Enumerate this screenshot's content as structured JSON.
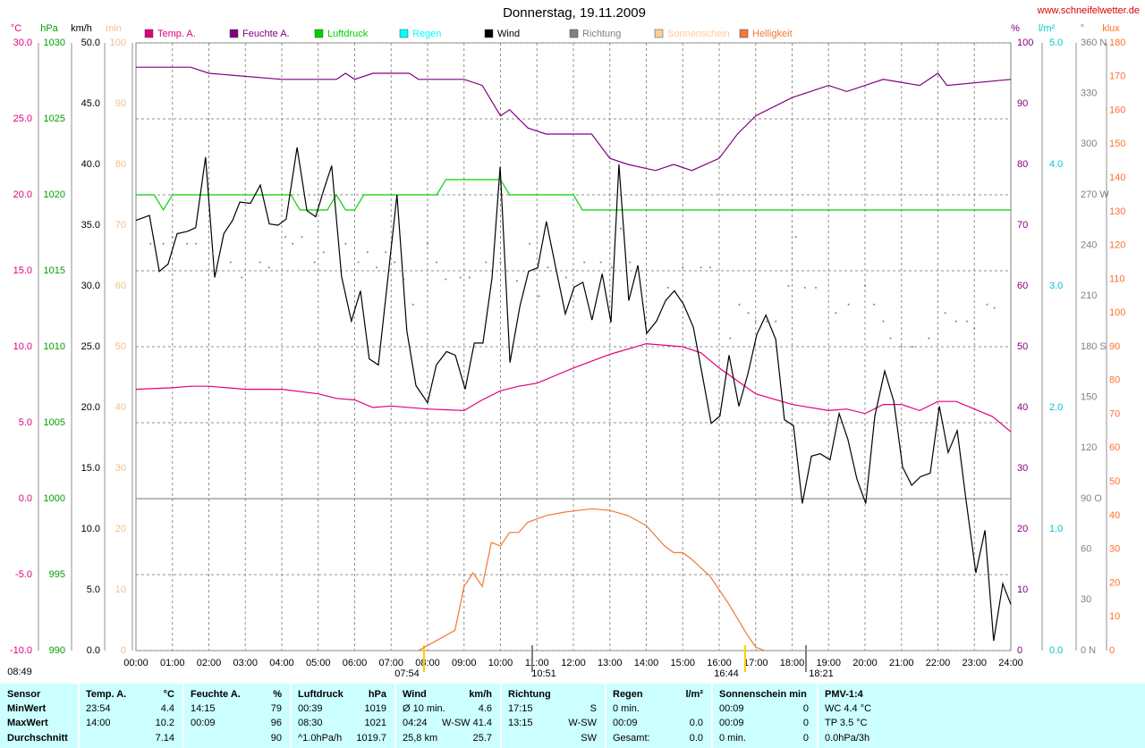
{
  "chart_data": {
    "type": "line",
    "title": "Donnerstag, 19.11.2009",
    "source": "www.schneifelwetter.de",
    "xlim": [
      0,
      24
    ],
    "xticks": [
      {
        "value": 0,
        "label": "00:00"
      },
      {
        "value": 1,
        "label": "01:00"
      },
      {
        "value": 2,
        "label": "02:00"
      },
      {
        "value": 3,
        "label": "03:00"
      },
      {
        "value": 4,
        "label": "04:00"
      },
      {
        "value": 5,
        "label": "05:00"
      },
      {
        "value": 6,
        "label": "06:00"
      },
      {
        "value": 7,
        "label": "07:00"
      },
      {
        "value": 8,
        "label": "08:00"
      },
      {
        "value": 9,
        "label": "09:00"
      },
      {
        "value": 10,
        "label": "10:00"
      },
      {
        "value": 11,
        "label": "11:00"
      },
      {
        "value": 12,
        "label": "12:00"
      },
      {
        "value": 13,
        "label": "13:00"
      },
      {
        "value": 14,
        "label": "14:00"
      },
      {
        "value": 15,
        "label": "15:00"
      },
      {
        "value": 16,
        "label": "16:00"
      },
      {
        "value": 17,
        "label": "17:00"
      },
      {
        "value": 18,
        "label": "18:00"
      },
      {
        "value": 19,
        "label": "19:00"
      },
      {
        "value": 20,
        "label": "20:00"
      },
      {
        "value": 21,
        "label": "21:00"
      },
      {
        "value": 22,
        "label": "22:00"
      },
      {
        "value": 23,
        "label": "23:00"
      },
      {
        "value": 24,
        "label": "24:00"
      }
    ],
    "grid": true,
    "axes": [
      {
        "unit": "°C",
        "color": "#e0007f",
        "side": "left",
        "ylim": [
          -10,
          30
        ],
        "yticks": [
          {
            "value": -10,
            "label": "-10.0"
          },
          {
            "value": -5,
            "label": "-5.0"
          },
          {
            "value": 0,
            "label": "0.0"
          },
          {
            "value": 5,
            "label": "5.0"
          },
          {
            "value": 10,
            "label": "10.0"
          },
          {
            "value": 15,
            "label": "15.0"
          },
          {
            "value": 20,
            "label": "20.0"
          },
          {
            "value": 25,
            "label": "25.0"
          },
          {
            "value": 30,
            "label": "30.0"
          }
        ]
      },
      {
        "unit": "hPa",
        "color": "#00a000",
        "side": "left",
        "ylim": [
          990,
          1030
        ],
        "yticks": [
          990,
          995,
          1000,
          1005,
          1010,
          1015,
          1020,
          1025,
          1030
        ]
      },
      {
        "unit": "km/h",
        "color": "#000000",
        "side": "left",
        "ylim": [
          0,
          50
        ],
        "yticks": [
          {
            "value": 0,
            "label": "0.0"
          },
          {
            "value": 5,
            "label": "5.0"
          },
          {
            "value": 10,
            "label": "10.0"
          },
          {
            "value": 15,
            "label": "15.0"
          },
          {
            "value": 20,
            "label": "20.0"
          },
          {
            "value": 25,
            "label": "25.0"
          },
          {
            "value": 30,
            "label": "30.0"
          },
          {
            "value": 35,
            "label": "35.0"
          },
          {
            "value": 40,
            "label": "40.0"
          },
          {
            "value": 45,
            "label": "45.0"
          },
          {
            "value": 50,
            "label": "50.0"
          }
        ]
      },
      {
        "unit": "min",
        "color": "#f0c090",
        "side": "left",
        "ylim": [
          0,
          100
        ],
        "yticks": [
          0,
          10,
          20,
          30,
          40,
          50,
          60,
          70,
          80,
          90,
          100
        ]
      },
      {
        "unit": "%",
        "color": "#800080",
        "side": "right",
        "ylim": [
          0,
          100
        ],
        "yticks": [
          0,
          10,
          20,
          30,
          40,
          50,
          60,
          70,
          80,
          90,
          100
        ]
      },
      {
        "unit": "l/m²",
        "color": "#00c8c8",
        "side": "right",
        "ylim": [
          0,
          5
        ],
        "yticks": [
          {
            "value": 0,
            "label": "0.0"
          },
          {
            "value": 1,
            "label": "1.0"
          },
          {
            "value": 2,
            "label": "2.0"
          },
          {
            "value": 3,
            "label": "3.0"
          },
          {
            "value": 4,
            "label": "4.0"
          },
          {
            "value": 5,
            "label": "5.0"
          }
        ]
      },
      {
        "unit": "°",
        "color": "#808080",
        "side": "right",
        "ylim": [
          0,
          360
        ],
        "yticks": [
          {
            "value": 0,
            "label": "0 N"
          },
          30,
          60,
          {
            "value": 90,
            "label": "90 O"
          },
          120,
          150,
          {
            "value": 180,
            "label": "180 S"
          },
          210,
          240,
          {
            "value": 270,
            "label": "270 W"
          },
          300,
          330,
          {
            "value": 360,
            "label": "360 N"
          }
        ]
      },
      {
        "unit": "klux",
        "color": "#ff7030",
        "side": "right",
        "ylim": [
          0,
          180
        ],
        "yticks": [
          0,
          10,
          20,
          30,
          40,
          50,
          60,
          70,
          80,
          90,
          100,
          110,
          120,
          130,
          140,
          150,
          160,
          170,
          180
        ]
      }
    ],
    "series": [
      {
        "name": "Temp. A.",
        "color": "#e0007f",
        "axis": 0,
        "style": "line",
        "x": [
          0,
          1,
          1.5,
          2,
          3,
          4,
          5,
          5.5,
          6,
          6.5,
          7,
          8,
          9,
          9.5,
          10,
          10.5,
          11,
          12,
          13,
          14,
          15,
          15.5,
          16,
          17,
          18,
          19,
          19.5,
          20,
          20.5,
          21,
          21.5,
          22,
          22.5,
          23,
          23.5,
          24
        ],
        "values": [
          7.2,
          7.3,
          7.4,
          7.4,
          7.2,
          7.2,
          6.9,
          6.6,
          6.5,
          6.0,
          6.1,
          5.9,
          5.8,
          6.5,
          7.1,
          7.4,
          7.6,
          8.6,
          9.5,
          10.2,
          10.0,
          9.6,
          8.6,
          6.9,
          6.2,
          5.8,
          5.9,
          5.6,
          6.2,
          6.2,
          5.8,
          6.4,
          6.4,
          5.9,
          5.4,
          4.4
        ]
      },
      {
        "name": "Feuchte A.",
        "color": "#800080",
        "axis": 4,
        "style": "line",
        "x": [
          0,
          1.5,
          2,
          4,
          5.5,
          5.75,
          6,
          6.5,
          7.5,
          7.75,
          9,
          9.5,
          10,
          10.25,
          10.75,
          11.25,
          12.5,
          13,
          13.5,
          14.25,
          14.75,
          15.25,
          16,
          16.5,
          17,
          18,
          18.5,
          19,
          19.5,
          20,
          20.5,
          21.5,
          22,
          22.25,
          24
        ],
        "values": [
          96,
          96,
          95,
          94,
          94,
          95,
          94,
          95,
          95,
          94,
          94,
          93,
          88,
          89,
          86,
          85,
          85,
          81,
          80,
          79,
          80,
          79,
          81,
          85,
          88,
          91,
          92,
          93,
          92,
          93,
          94,
          93,
          95,
          93,
          94
        ]
      },
      {
        "name": "Luftdruck",
        "color": "#00d000",
        "axis": 1,
        "style": "line",
        "x": [
          0,
          0.5,
          0.75,
          1,
          4.25,
          4.5,
          5.25,
          5.5,
          5.75,
          6,
          6.25,
          8.25,
          8.5,
          10,
          10.25,
          12,
          12.25,
          24
        ],
        "values": [
          1020,
          1020,
          1019,
          1020,
          1020,
          1019,
          1019,
          1020,
          1019,
          1019,
          1020,
          1020,
          1021,
          1021,
          1020,
          1020,
          1019,
          1019
        ]
      },
      {
        "name": "Regen",
        "color": "#00ffff",
        "axis": 5,
        "style": "line"
      },
      {
        "name": "Wind",
        "color": "#000000",
        "axis": 2,
        "style": "line",
        "x": [
          0,
          0.37,
          0.64,
          0.88,
          1.13,
          1.42,
          1.64,
          1.91,
          2.16,
          2.41,
          2.65,
          2.85,
          3.14,
          3.41,
          3.66,
          3.9,
          4.12,
          4.42,
          4.69,
          4.93,
          5.15,
          5.37,
          5.64,
          5.91,
          6.16,
          6.4,
          6.65,
          7.16,
          7.43,
          7.68,
          8,
          8.24,
          8.52,
          8.76,
          9.03,
          9.28,
          9.52,
          9.77,
          9.99,
          10.26,
          10.53,
          10.77,
          11.02,
          11.26,
          11.51,
          11.78,
          12.02,
          12.26,
          12.51,
          12.79,
          13.03,
          13.25,
          13.52,
          13.77,
          14.01,
          14.28,
          14.53,
          14.77,
          15.02,
          15.29,
          15.53,
          15.78,
          16.02,
          16.27,
          16.54,
          16.79,
          17.03,
          17.28,
          17.55,
          17.79,
          18.04,
          18.28,
          18.53,
          18.77,
          19.04,
          19.29,
          19.53,
          19.78,
          20.02,
          20.27,
          20.54,
          20.79,
          21.03,
          21.28,
          21.52,
          21.79,
          22.04,
          22.28,
          22.53,
          22.77,
          23.04,
          23.29,
          23.53,
          23.78,
          24
        ],
        "values": [
          35.4,
          35.8,
          31.2,
          31.8,
          34.3,
          34.5,
          34.8,
          40.6,
          30.7,
          34.3,
          35.4,
          36.9,
          36.8,
          38.3,
          35.1,
          35.0,
          35.5,
          41.4,
          36.2,
          35.7,
          37.9,
          39.9,
          30.8,
          27.1,
          29.6,
          24.0,
          23.5,
          37.5,
          26.3,
          21.8,
          20.4,
          23.5,
          24.6,
          24.3,
          21.5,
          25.3,
          25.3,
          30.7,
          39.8,
          23.7,
          28.3,
          31.2,
          31.5,
          35.3,
          31.6,
          27.7,
          29.9,
          30.3,
          27.2,
          31.0,
          27.0,
          40.0,
          28.8,
          31.7,
          26.1,
          27.1,
          28.8,
          29.6,
          28.5,
          26.6,
          22.8,
          18.7,
          19.3,
          24.3,
          20.1,
          22.8,
          26.0,
          27.6,
          25.6,
          19.0,
          18.5,
          12.1,
          16.0,
          16.2,
          15.7,
          19.5,
          17.4,
          14.1,
          12.1,
          19.3,
          23.0,
          20.5,
          15.1,
          13.6,
          14.3,
          14.6,
          20.1,
          16.3,
          18.1,
          12.4,
          6.4,
          9.9,
          0.8,
          5.5,
          3.8
        ]
      },
      {
        "name": "Richtung",
        "color": "#808080",
        "axis": 6,
        "style": "dots",
        "x": [
          0.4,
          0.75,
          1.0,
          1.4,
          1.65,
          2.1,
          2.6,
          2.9,
          3.4,
          3.65,
          4.1,
          4.3,
          4.55,
          4.9,
          5.15,
          5.75,
          6.1,
          6.35,
          6.6,
          6.85,
          7.1,
          7.35,
          7.6,
          8.0,
          8.25,
          8.5,
          8.9,
          9.15,
          9.6,
          10.0,
          10.45,
          10.8,
          11.05,
          11.3,
          11.8,
          12.3,
          12.75,
          13.05,
          13.3,
          13.55,
          14.6,
          15.0,
          15.5,
          15.75,
          16.3,
          16.55,
          16.8,
          17.0,
          17.3,
          17.55,
          17.9,
          18.1,
          18.35,
          18.65,
          19.2,
          19.55,
          20.0,
          20.25,
          20.5,
          20.7,
          21.0,
          21.3,
          21.75,
          22.2,
          22.5,
          22.8,
          23.0,
          23.35,
          23.55
        ],
        "values": [
          241,
          241,
          245,
          241,
          241,
          235,
          230,
          221,
          230,
          227,
          245,
          241,
          245,
          230,
          236,
          241,
          230,
          236,
          227,
          236,
          230,
          220,
          205,
          241,
          230,
          220,
          221,
          221,
          230,
          230,
          219,
          241,
          210,
          227,
          221,
          230,
          230,
          227,
          250,
          230,
          215,
          227,
          227,
          227,
          185,
          205,
          200,
          195,
          195,
          195,
          216,
          245,
          215,
          215,
          200,
          205,
          216,
          205,
          195,
          185,
          180,
          180,
          185,
          200,
          195,
          195,
          191,
          205,
          203
        ]
      },
      {
        "name": "Sonnenschein",
        "color": "#ffcc99",
        "axis": 3,
        "style": "line"
      },
      {
        "name": "Helligkeit",
        "color": "#f07838",
        "axis": 7,
        "style": "line",
        "x": [
          7.75,
          8.25,
          8.75,
          9.0,
          9.25,
          9.5,
          9.75,
          10.0,
          10.25,
          10.5,
          10.75,
          11.25,
          11.75,
          12.5,
          13.0,
          13.5,
          14.0,
          14.5,
          14.75,
          15.0,
          15.25,
          15.75,
          16.25,
          16.75,
          17.0,
          17.25
        ],
        "values": [
          0,
          3,
          6,
          19,
          23,
          19,
          32,
          31,
          35,
          35,
          38,
          40,
          41,
          42,
          41.5,
          40,
          37,
          31,
          29,
          29,
          27,
          22,
          14,
          5,
          1,
          0
        ]
      }
    ],
    "annotations": [
      "08:49",
      "07:54",
      "10:51",
      "16:44",
      "18:21"
    ]
  },
  "table": {
    "columns": [
      {
        "header": {
          "left": "Sensor"
        },
        "rows": [
          {
            "left": "MinWert"
          },
          {
            "left": "MaxWert"
          },
          {
            "left": "Durchschnitt"
          }
        ]
      },
      {
        "header": {
          "left": "Temp. A.",
          "right": "°C"
        },
        "rows": [
          {
            "left": "23:54",
            "right": "4.4"
          },
          {
            "left": "14:00",
            "right": "10.2"
          },
          {
            "right": "7.14"
          }
        ]
      },
      {
        "header": {
          "left": "Feuchte A.",
          "right": "%"
        },
        "rows": [
          {
            "left": "14:15",
            "right": "79"
          },
          {
            "left": "00:09",
            "right": "96"
          },
          {
            "right": "90"
          }
        ]
      },
      {
        "header": {
          "left": "Luftdruck",
          "right": "hPa"
        },
        "rows": [
          {
            "left": "00:39",
            "right": "1019"
          },
          {
            "left": "08:30",
            "right": "1021"
          },
          {
            "left": "^1.0hPa/h",
            "right": "1019.7"
          }
        ]
      },
      {
        "header": {
          "left": "Wind",
          "right": "km/h"
        },
        "rows": [
          {
            "left": "Ø 10 min.",
            "right": "4.6"
          },
          {
            "left": "04:24",
            "right": "W-SW 41.4"
          },
          {
            "left": "25,8 km",
            "right": "25.7"
          }
        ]
      },
      {
        "header": {
          "left": "Richtung"
        },
        "rows": [
          {
            "left": "17:15",
            "right": "S"
          },
          {
            "left": "13:15",
            "right": "W-SW"
          },
          {
            "right": "SW"
          }
        ]
      },
      {
        "header": {
          "left": "Regen",
          "right": "l/m²"
        },
        "rows": [
          {
            "left": "0 min."
          },
          {
            "left": "00:09",
            "right": "0.0"
          },
          {
            "left": "Gesamt:",
            "right": "0.0"
          }
        ]
      },
      {
        "header": {
          "left": "Sonnenschein min"
        },
        "rows": [
          {
            "left": "00:09",
            "right": "0"
          },
          {
            "left": "00:09",
            "right": "0"
          },
          {
            "left": "0 min.",
            "right": "0"
          }
        ]
      },
      {
        "header": {
          "left": "PMV-1:4"
        },
        "rows": [
          {
            "left": "WC 4.4 °C"
          },
          {
            "left": "TP 3.5 °C"
          },
          {
            "left": "0.0hPa/3h"
          }
        ]
      }
    ]
  }
}
